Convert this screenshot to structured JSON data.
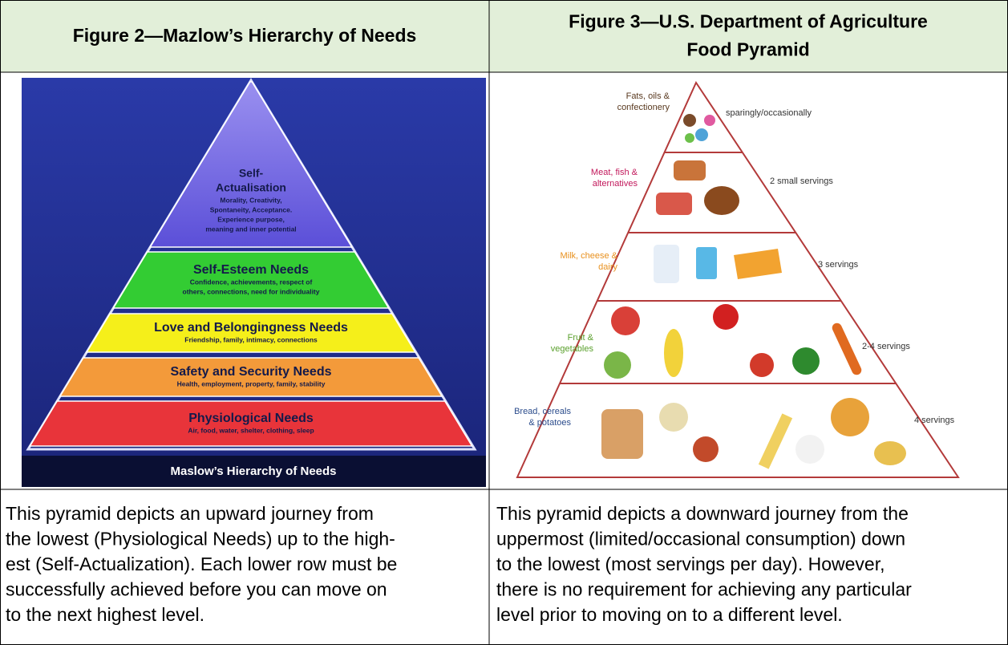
{
  "header": {
    "left": [
      "Figure 2—Mazlow’s Hierarchy of Needs"
    ],
    "right": [
      "Figure 3—U.S. Department of Agriculture",
      "Food Pyramid"
    ]
  },
  "maslow": {
    "levels": [
      {
        "title": [
          "Physiological Needs"
        ],
        "detail": [
          "Air, food, water, shelter, clothing, sleep"
        ]
      },
      {
        "title": [
          "Safety and Security Needs"
        ],
        "detail": [
          "Health, employment, property, family, stability"
        ]
      },
      {
        "title": [
          "Love and Belongingness Needs"
        ],
        "detail": [
          "Friendship, family, intimacy, connections"
        ]
      },
      {
        "title": [
          "Self-Esteem Needs"
        ],
        "detail": [
          "Confidence, achievements, respect of",
          "others, connections, need for individuality"
        ]
      },
      {
        "title": [
          "Self-",
          "Actualisation"
        ],
        "detail": [
          "Morality, Creativity,",
          "Spontaneity, Acceptance.",
          "Experience purpose,",
          "meaning and inner potential"
        ]
      }
    ],
    "caption": "Maslow’s Hierarchy of Needs"
  },
  "food": {
    "levels": [
      {
        "label": [
          "Fats, oils &",
          "confectionery"
        ],
        "servings": "sparingly/occasionally"
      },
      {
        "label": [
          "Meat, fish &",
          "alternatives"
        ],
        "servings": "2 small servings"
      },
      {
        "label": [
          "Milk, cheese &",
          "dairy"
        ],
        "servings": "3 servings"
      },
      {
        "label": [
          "Fruit &",
          "vegetables"
        ],
        "servings": "2-4 servings"
      },
      {
        "label": [
          "Bread, cereals",
          "& potatoes"
        ],
        "servings": "4 servings"
      }
    ]
  },
  "descriptions": {
    "left": [
      "This pyramid depicts an upward journey from",
      "the lowest (Physiological Needs) up to the high-",
      "est (Self-Actualization). Each lower row must be",
      "successfully achieved before you can move on",
      "to the next highest level."
    ],
    "right": [
      "This pyramid depicts a downward journey from the",
      "uppermost (limited/occasional consumption) down",
      "to the lowest (most servings per day). However,",
      "there is no requirement for achieving any particular",
      "level prior to moving on to a different level."
    ]
  }
}
